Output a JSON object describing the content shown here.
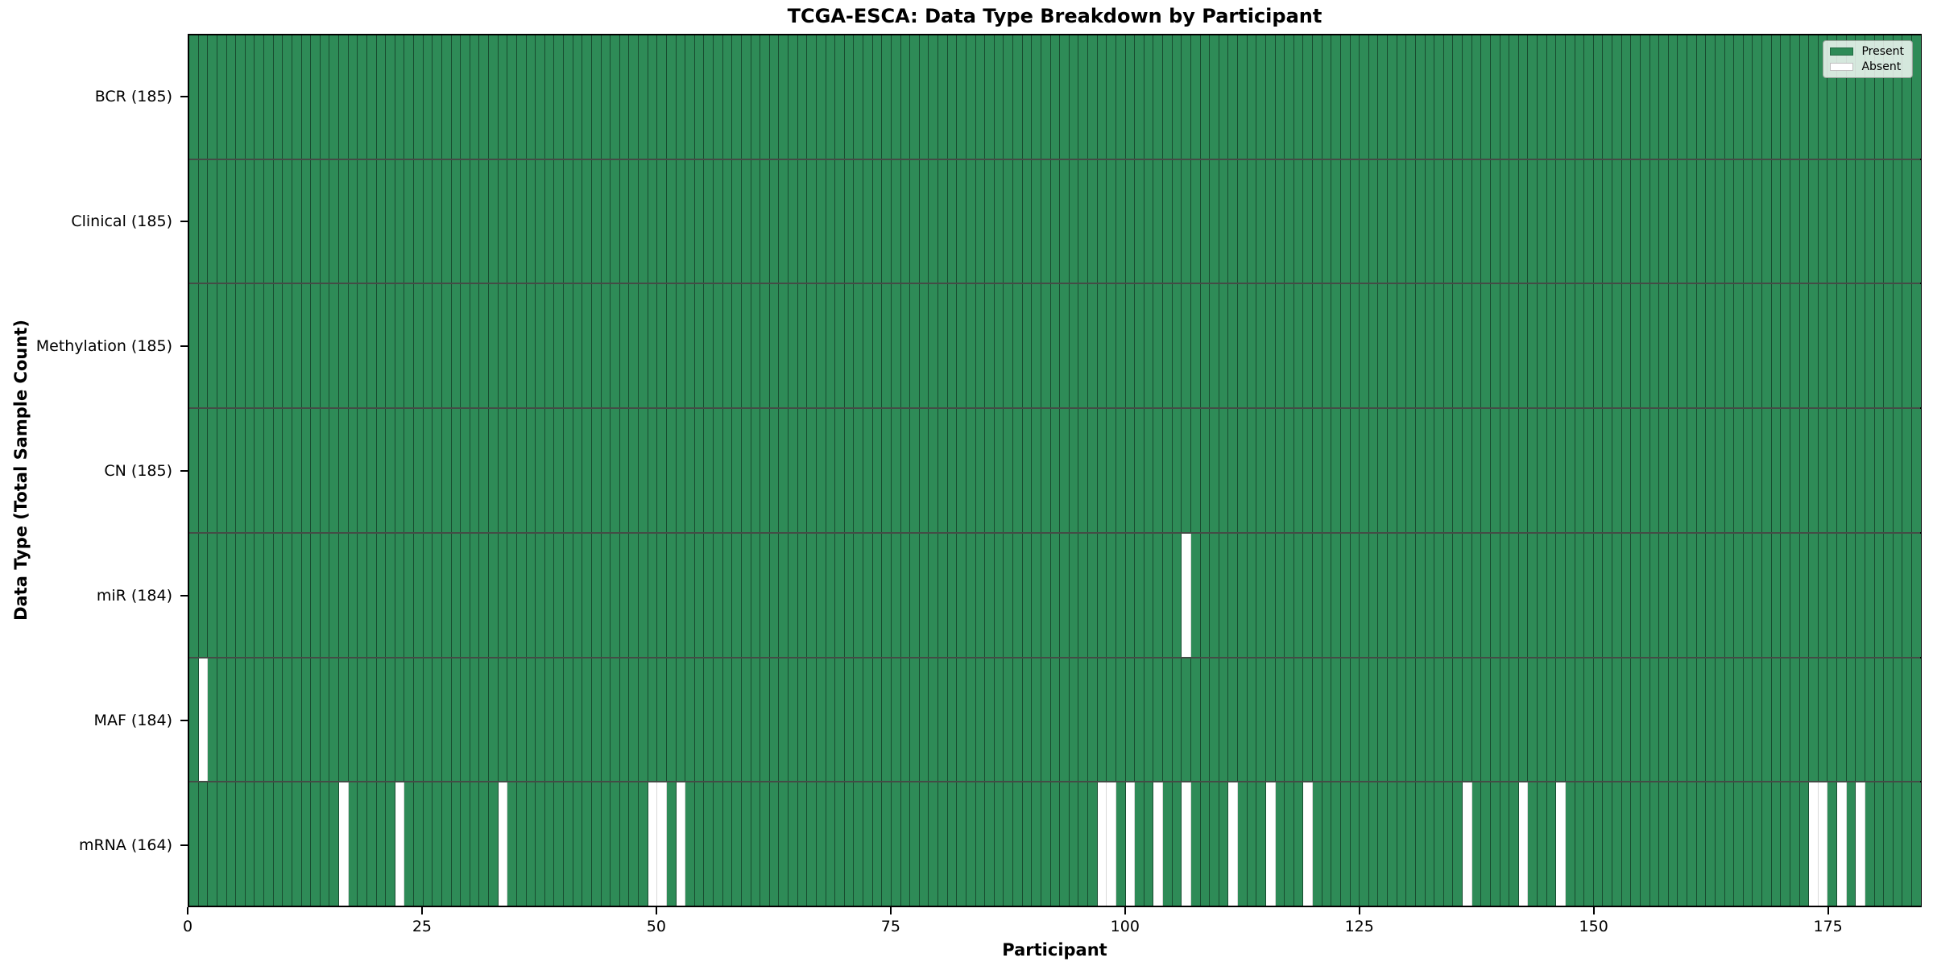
{
  "chart_data": {
    "type": "heatmap",
    "title": "TCGA-ESCA: Data Type Breakdown by Participant",
    "xlabel": "Participant",
    "ylabel": "Data Type (Total Sample Count)",
    "n_participants": 185,
    "x_ticks": [
      0,
      25,
      50,
      75,
      100,
      125,
      150,
      175
    ],
    "x_range": [
      0,
      185
    ],
    "grid": false,
    "legend_position": "upper right",
    "legend": [
      {
        "label": "Present",
        "color": "#2e8b57"
      },
      {
        "label": "Absent",
        "color": "#ffffff"
      }
    ],
    "colors": {
      "present": "#2e8b57",
      "absent": "#ffffff",
      "cell_edge": "rgba(8,24,14,0.55)",
      "row_edge": "rgba(15,25,18,0.78)"
    },
    "rows": [
      {
        "label": "BCR (185)",
        "data_type": "BCR",
        "total_count": 185,
        "absent_participants": []
      },
      {
        "label": "Clinical (185)",
        "data_type": "Clinical",
        "total_count": 185,
        "absent_participants": []
      },
      {
        "label": "Methylation (185)",
        "data_type": "Methylation",
        "total_count": 185,
        "absent_participants": []
      },
      {
        "label": "CN (185)",
        "data_type": "CN",
        "total_count": 185,
        "absent_participants": []
      },
      {
        "label": "miR (184)",
        "data_type": "miR",
        "total_count": 184,
        "absent_participants": [
          106
        ]
      },
      {
        "label": "MAF (184)",
        "data_type": "MAF",
        "total_count": 184,
        "absent_participants": [
          1
        ]
      },
      {
        "label": "mRNA (164)",
        "data_type": "mRNA",
        "total_count": 164,
        "absent_participants": [
          16,
          22,
          33,
          49,
          50,
          52,
          97,
          98,
          100,
          103,
          106,
          111,
          115,
          119,
          136,
          142,
          146,
          173,
          174,
          176,
          178
        ]
      }
    ]
  }
}
